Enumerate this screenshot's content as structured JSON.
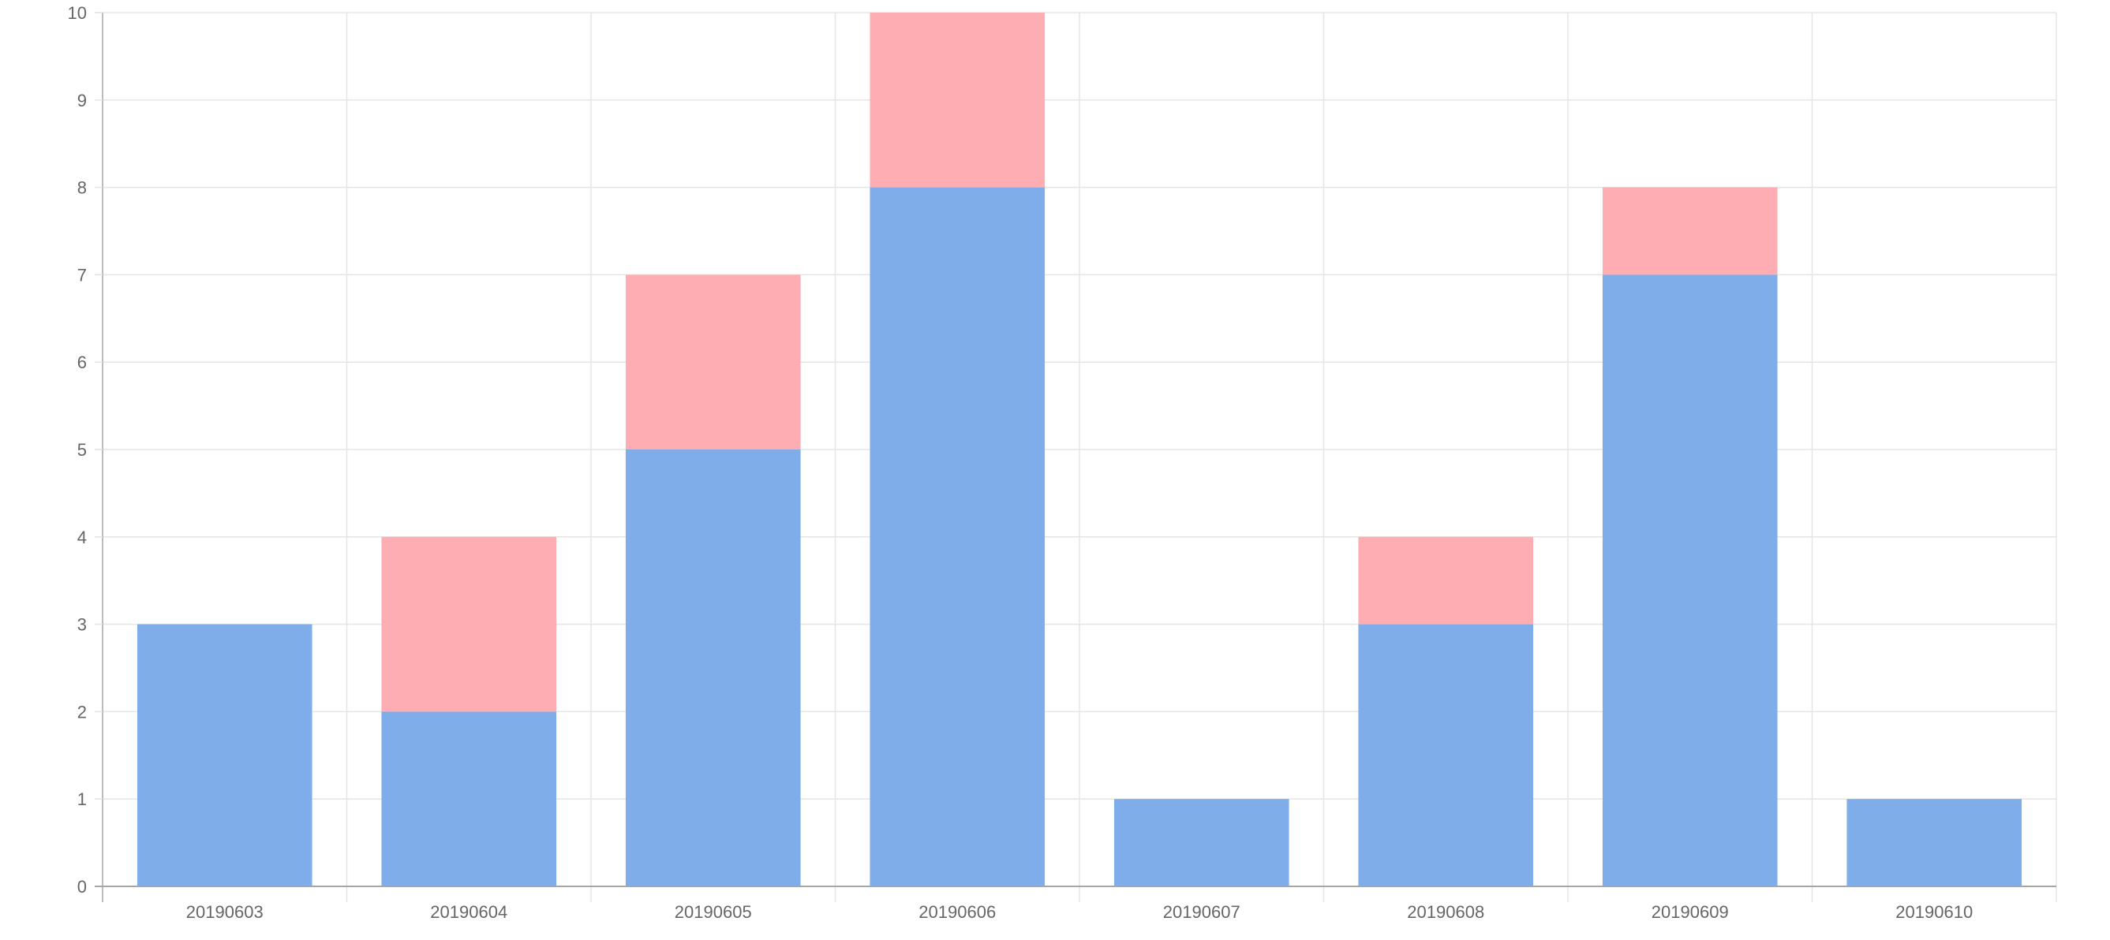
{
  "chart_data": {
    "type": "bar",
    "stacked": true,
    "categories": [
      "20190603",
      "20190604",
      "20190605",
      "20190606",
      "20190607",
      "20190608",
      "20190609",
      "20190610"
    ],
    "series": [
      {
        "values": [
          3,
          2,
          5,
          8,
          1,
          3,
          7,
          1
        ],
        "color": "#7fadea"
      },
      {
        "values": [
          0,
          2,
          2,
          2,
          0,
          1,
          1,
          0
        ],
        "color": "#feadb2"
      }
    ],
    "ylim": [
      0,
      10
    ],
    "yticks": [
      "0",
      "1",
      "2",
      "3",
      "4",
      "5",
      "6",
      "7",
      "8",
      "9",
      "10"
    ],
    "grid": true,
    "legend": "none",
    "gridColor": "#e5e5e5",
    "axisColor": "#a6a6a6"
  }
}
